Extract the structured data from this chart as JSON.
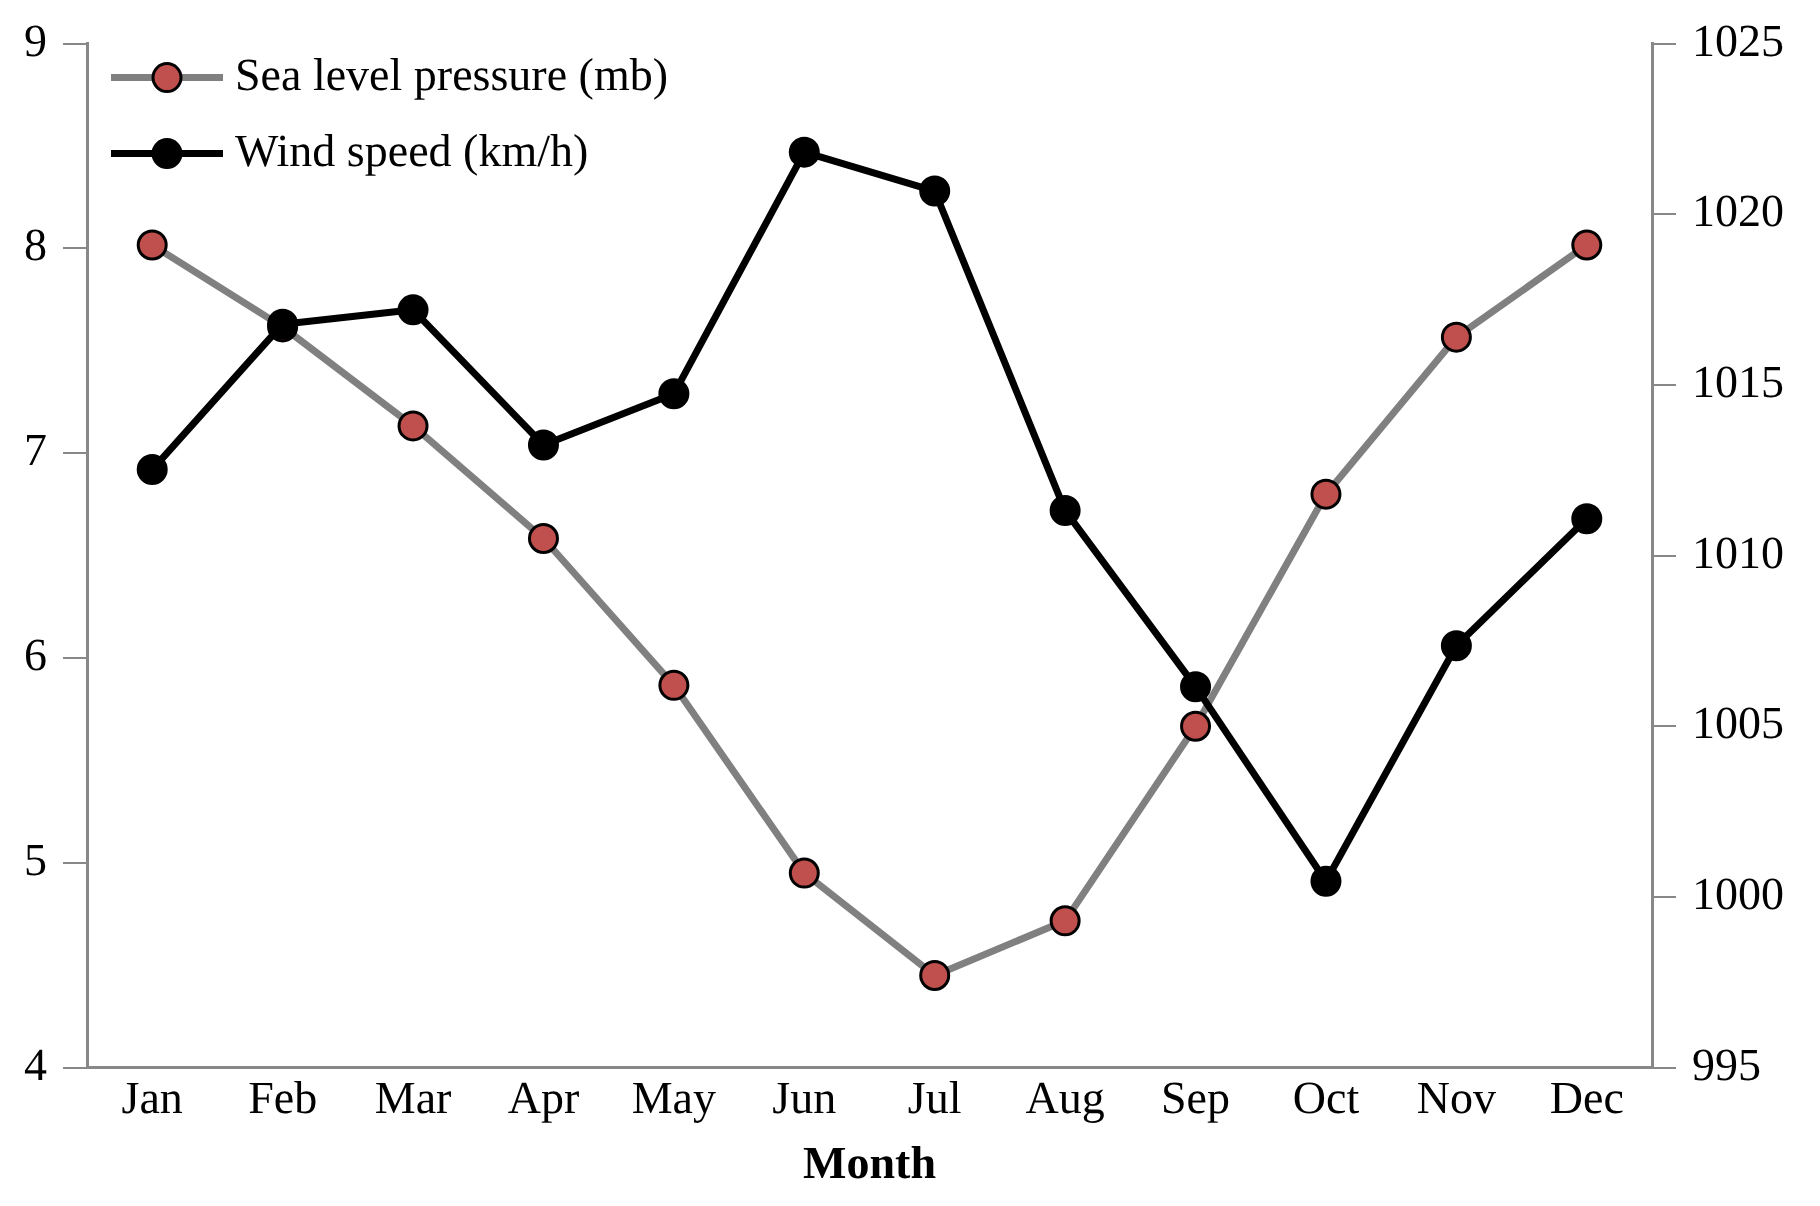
{
  "chart_data": {
    "type": "line",
    "xlabel": "Month",
    "categories": [
      "Jan",
      "Feb",
      "Mar",
      "Apr",
      "May",
      "Jun",
      "Jul",
      "Aug",
      "Sep",
      "Oct",
      "Nov",
      "Dec"
    ],
    "series": [
      {
        "name": "Sea level pressure (mb)",
        "color": "#808080",
        "axis": "y2",
        "values": [
          1019.1,
          1016.7,
          1013.8,
          1010.5,
          1006.2,
          1000.7,
          997.7,
          999.3,
          1005.0,
          1011.8,
          1016.4,
          1019.1
        ]
      },
      {
        "name": "Wind speed (km/h)",
        "color": "#000000",
        "values": [
          6.92,
          7.63,
          7.7,
          7.04,
          7.29,
          8.47,
          8.28,
          6.72,
          5.86,
          4.91,
          6.06,
          6.68
        ]
      }
    ],
    "ylim": [
      4,
      9
    ],
    "yticks": [
      4,
      5,
      6,
      7,
      8,
      9
    ],
    "y2lim": [
      995,
      1025
    ],
    "y2ticks": [
      995,
      1000,
      1005,
      1010,
      1015,
      1020,
      1025
    ],
    "grid": false,
    "legend": "top left",
    "marker": "circle",
    "line_style": "solid"
  }
}
